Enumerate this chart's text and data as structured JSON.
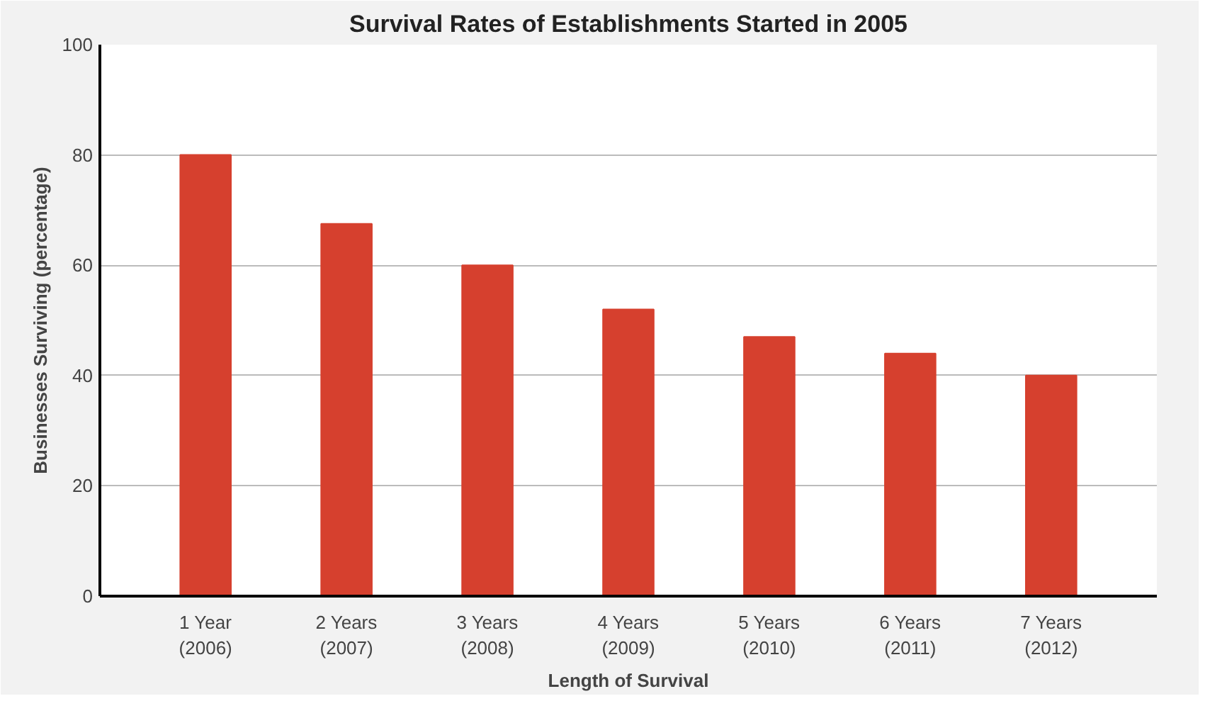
{
  "chart_data": {
    "type": "bar",
    "title": "Survival Rates of Establishments Started in 2005",
    "xlabel": "Length of Survival",
    "ylabel": "Businesses Surviving (percentage)",
    "categories": [
      "1 Year\n(2006)",
      "2 Years\n(2007)",
      "3 Years\n(2008)",
      "4 Years\n(2009)",
      "5 Years\n(2010)",
      "6 Years\n(2011)",
      "7 Years\n(2012)"
    ],
    "values": [
      80,
      67.5,
      60,
      52,
      47,
      44,
      40
    ],
    "color": "#d6402e",
    "ylim": [
      0,
      100
    ],
    "yticks": [
      0,
      20,
      40,
      60,
      80,
      100
    ],
    "grid": "y"
  }
}
